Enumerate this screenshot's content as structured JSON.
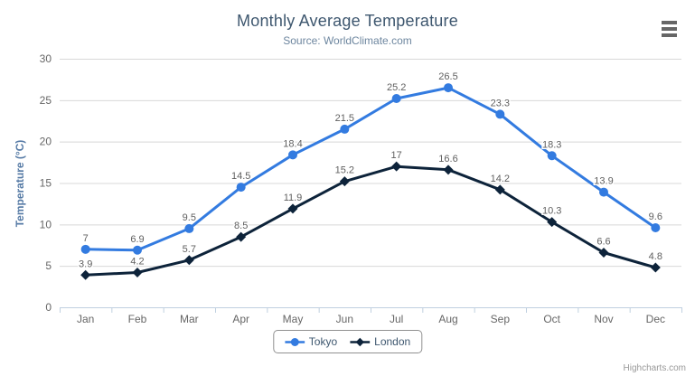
{
  "header": {
    "title": "Monthly Average Temperature",
    "subtitle": "Source: WorldClimate.com",
    "menu_icon": "hamburger-context-menu"
  },
  "credits": {
    "label": "Highcharts.com"
  },
  "legend": {
    "position": "bottom-center",
    "items": [
      "Tokyo",
      "London"
    ]
  },
  "colors": {
    "title": "#3e576f",
    "subtitle": "#6d869f",
    "axis_title": "#557aa5",
    "tick_label": "#666666",
    "data_label": "#606060",
    "grid": "#d8d8d8",
    "axis_line": "#c0d0e0",
    "legend_border": "#909090",
    "tokyo": "#337be0",
    "london": "#0d233a"
  },
  "chart_data": {
    "type": "line",
    "title": "Monthly Average Temperature",
    "subtitle": "Source: WorldClimate.com",
    "categories": [
      "Jan",
      "Feb",
      "Mar",
      "Apr",
      "May",
      "Jun",
      "Jul",
      "Aug",
      "Sep",
      "Oct",
      "Nov",
      "Dec"
    ],
    "series": [
      {
        "name": "Tokyo",
        "color": "#337be0",
        "marker": "circle",
        "values": [
          7,
          6.9,
          9.5,
          14.5,
          18.4,
          21.5,
          25.2,
          26.5,
          23.3,
          18.3,
          13.9,
          9.6
        ]
      },
      {
        "name": "London",
        "color": "#0d233a",
        "marker": "diamond",
        "values": [
          3.9,
          4.2,
          5.7,
          8.5,
          11.9,
          15.2,
          17,
          16.6,
          14.2,
          10.3,
          6.6,
          4.8
        ]
      }
    ],
    "xlabel": "",
    "ylabel": "Temperature (°C)",
    "ylim": [
      0,
      30
    ],
    "yticks": [
      0,
      5,
      10,
      15,
      20,
      25,
      30
    ],
    "grid": true,
    "data_labels": true,
    "legend_position": "bottom-center"
  }
}
